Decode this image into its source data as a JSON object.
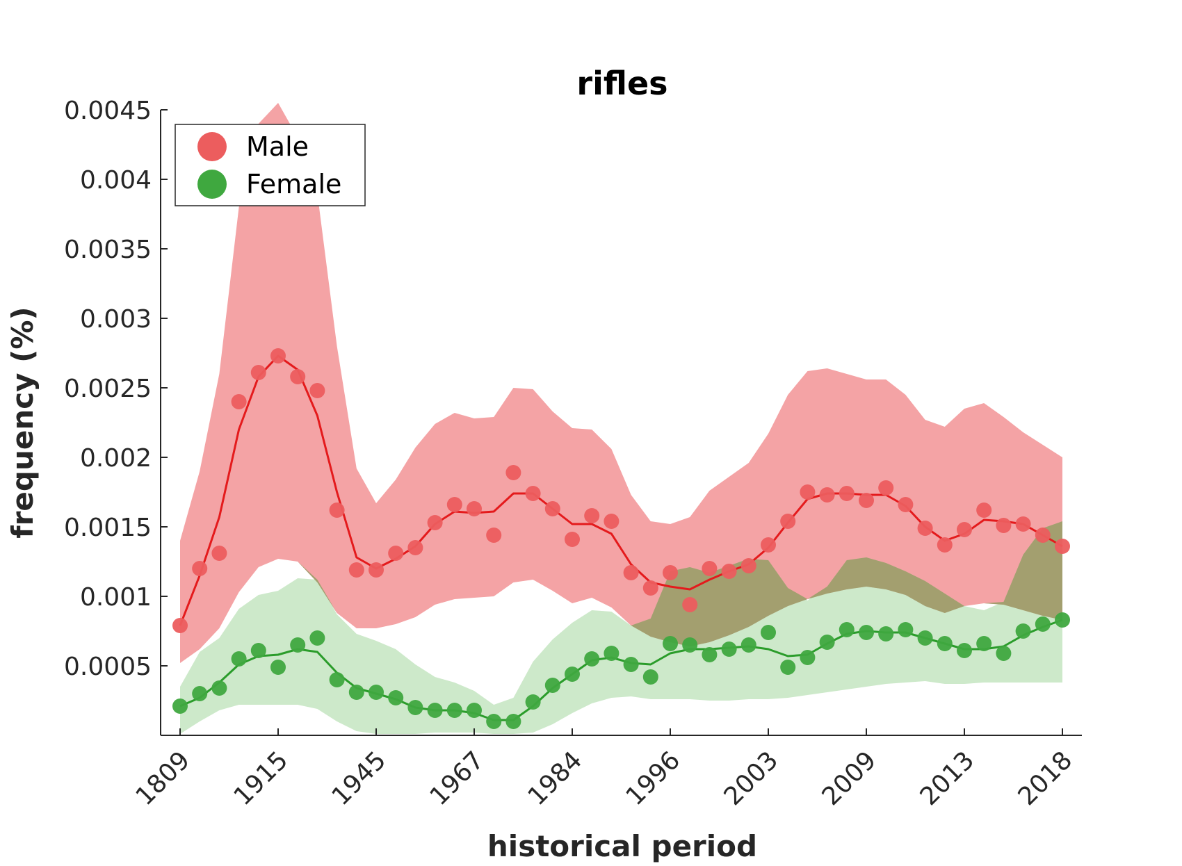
{
  "chart_data": {
    "type": "line",
    "title": "rifles",
    "xlabel": "historical period",
    "ylabel": "frequency (%)",
    "ylim": [
      0,
      0.0045
    ],
    "yticks": [
      0.0005,
      0.001,
      0.0015,
      0.002,
      0.0025,
      0.003,
      0.0035,
      0.004,
      0.0045
    ],
    "ytick_labels": [
      "0.0005",
      "0.001",
      "0.0015",
      "0.002",
      "0.0025",
      "0.003",
      "0.0035",
      "0.004",
      "0.0045"
    ],
    "xtick_labels": [
      "1809",
      "1915",
      "1945",
      "1967",
      "1984",
      "1996",
      "2003",
      "2009",
      "2013",
      "2018"
    ],
    "xtick_positions": [
      0,
      5,
      10,
      15,
      20,
      25,
      30,
      35,
      40,
      45
    ],
    "legend_position": "top-left",
    "series": [
      {
        "name": "Male",
        "color": "#e41a1c",
        "marker_color": "#ec5d5e",
        "band_color": "#f4a3a5",
        "points": [
          0.00079,
          0.0012,
          0.00131,
          0.0024,
          0.00261,
          0.00273,
          0.00258,
          0.00248,
          0.00162,
          0.00119,
          0.00119,
          0.00131,
          0.00135,
          0.00153,
          0.00166,
          0.00163,
          0.00144,
          0.00189,
          0.00174,
          0.00163,
          0.00141,
          0.00158,
          0.00154,
          0.00117,
          0.00106,
          0.00117,
          0.00094,
          0.0012,
          0.00118,
          0.00122,
          0.00137,
          0.00154,
          0.00175,
          0.00173,
          0.00174,
          0.00169,
          0.00178,
          0.00166,
          0.00149,
          0.00137,
          0.00148,
          0.00162,
          0.00151,
          0.00152,
          0.00144,
          0.00136
        ],
        "line": [
          0.00079,
          0.00115,
          0.00157,
          0.0022,
          0.00258,
          0.00273,
          0.00263,
          0.0023,
          0.00175,
          0.00128,
          0.0012,
          0.00127,
          0.00136,
          0.00152,
          0.00161,
          0.0016,
          0.00161,
          0.00174,
          0.00174,
          0.00163,
          0.00152,
          0.00152,
          0.00145,
          0.00123,
          0.0011,
          0.00107,
          0.00105,
          0.00112,
          0.00118,
          0.00123,
          0.00135,
          0.00153,
          0.0017,
          0.00174,
          0.00174,
          0.00173,
          0.00173,
          0.00165,
          0.0015,
          0.0014,
          0.00145,
          0.00155,
          0.00154,
          0.00152,
          0.00144,
          0.00136
        ],
        "band_upper": [
          0.0014,
          0.0019,
          0.0026,
          0.0038,
          0.0044,
          0.00455,
          0.0043,
          0.0039,
          0.0028,
          0.00192,
          0.00167,
          0.00184,
          0.00207,
          0.00224,
          0.00232,
          0.00228,
          0.00229,
          0.0025,
          0.00249,
          0.00233,
          0.00221,
          0.0022,
          0.00206,
          0.00173,
          0.00154,
          0.00152,
          0.00157,
          0.00176,
          0.00186,
          0.00196,
          0.00217,
          0.00245,
          0.00262,
          0.00264,
          0.0026,
          0.00256,
          0.00256,
          0.00245,
          0.00227,
          0.00222,
          0.00235,
          0.00239,
          0.00229,
          0.00218,
          0.00209,
          0.002
        ],
        "band_lower": [
          0.00052,
          0.00062,
          0.00077,
          0.00103,
          0.00121,
          0.00127,
          0.00125,
          0.0011,
          0.00088,
          0.00077,
          0.00077,
          0.0008,
          0.00085,
          0.00094,
          0.00098,
          0.00099,
          0.001,
          0.0011,
          0.00112,
          0.00104,
          0.00095,
          0.00099,
          0.00092,
          0.00079,
          0.00071,
          0.00067,
          0.00064,
          0.00067,
          0.00072,
          0.00078,
          0.00086,
          0.00093,
          0.00098,
          0.00102,
          0.00105,
          0.00107,
          0.00105,
          0.00101,
          0.00093,
          0.00088,
          0.00093,
          0.00095,
          0.00094,
          0.0009,
          0.00086,
          0.00083
        ]
      },
      {
        "name": "Female",
        "color": "#2a9c2a",
        "marker_color": "#3fa83f",
        "band_color": "#a4d79e",
        "points": [
          0.00021,
          0.0003,
          0.00034,
          0.00055,
          0.00061,
          0.00049,
          0.00065,
          0.0007,
          0.0004,
          0.00031,
          0.00031,
          0.00027,
          0.0002,
          0.00018,
          0.00018,
          0.00018,
          0.0001,
          0.0001,
          0.00024,
          0.00036,
          0.00044,
          0.00055,
          0.00059,
          0.00051,
          0.00042,
          0.00066,
          0.00065,
          0.00058,
          0.00062,
          0.00065,
          0.00074,
          0.00049,
          0.00056,
          0.00067,
          0.00076,
          0.00074,
          0.00073,
          0.00076,
          0.0007,
          0.00066,
          0.00061,
          0.00066,
          0.00059,
          0.00075,
          0.0008,
          0.00083
        ],
        "line": [
          0.00021,
          0.00027,
          0.00038,
          0.00051,
          0.00057,
          0.00058,
          0.00062,
          0.0006,
          0.00045,
          0.00034,
          0.0003,
          0.00026,
          0.0002,
          0.00018,
          0.00018,
          0.00016,
          0.00011,
          0.00011,
          0.00021,
          0.00034,
          0.00044,
          0.00054,
          0.00056,
          0.00052,
          0.00051,
          0.00059,
          0.00062,
          0.00062,
          0.00063,
          0.00064,
          0.00062,
          0.00057,
          0.00058,
          0.00066,
          0.00073,
          0.00075,
          0.00074,
          0.00074,
          0.0007,
          0.00066,
          0.00062,
          0.00062,
          0.00064,
          0.00072,
          0.00078,
          0.00083
        ],
        "band_upper": [
          0.00035,
          0.0006,
          0.0007,
          0.00091,
          0.00101,
          0.00104,
          0.00113,
          0.00112,
          0.00087,
          0.00073,
          0.00068,
          0.00062,
          0.00051,
          0.00042,
          0.00038,
          0.00032,
          0.00022,
          0.00027,
          0.00053,
          0.00069,
          0.00081,
          0.0009,
          0.00089,
          0.00079,
          0.00084,
          0.00118,
          0.00121,
          0.00117,
          0.00122,
          0.00127,
          0.00126,
          0.00106,
          0.00097,
          0.00107,
          0.00126,
          0.00128,
          0.00124,
          0.00118,
          0.00111,
          0.00102,
          0.00093,
          0.0009,
          0.00096,
          0.0013,
          0.00149,
          0.00154
        ],
        "band_lower": [
          1e-05,
          0.0001,
          0.00018,
          0.00022,
          0.00022,
          0.00022,
          0.00022,
          0.00019,
          0.0001,
          3e-05,
          1e-05,
          1e-05,
          1e-05,
          2e-05,
          2e-05,
          2e-05,
          1e-05,
          1e-05,
          2e-05,
          8e-05,
          0.00016,
          0.00023,
          0.00027,
          0.00028,
          0.00026,
          0.00026,
          0.00026,
          0.00025,
          0.00025,
          0.00026,
          0.00026,
          0.00027,
          0.00029,
          0.00031,
          0.00033,
          0.00035,
          0.00037,
          0.00038,
          0.00039,
          0.00037,
          0.00037,
          0.00038,
          0.00038,
          0.00038,
          0.00038,
          0.00038
        ]
      }
    ]
  }
}
